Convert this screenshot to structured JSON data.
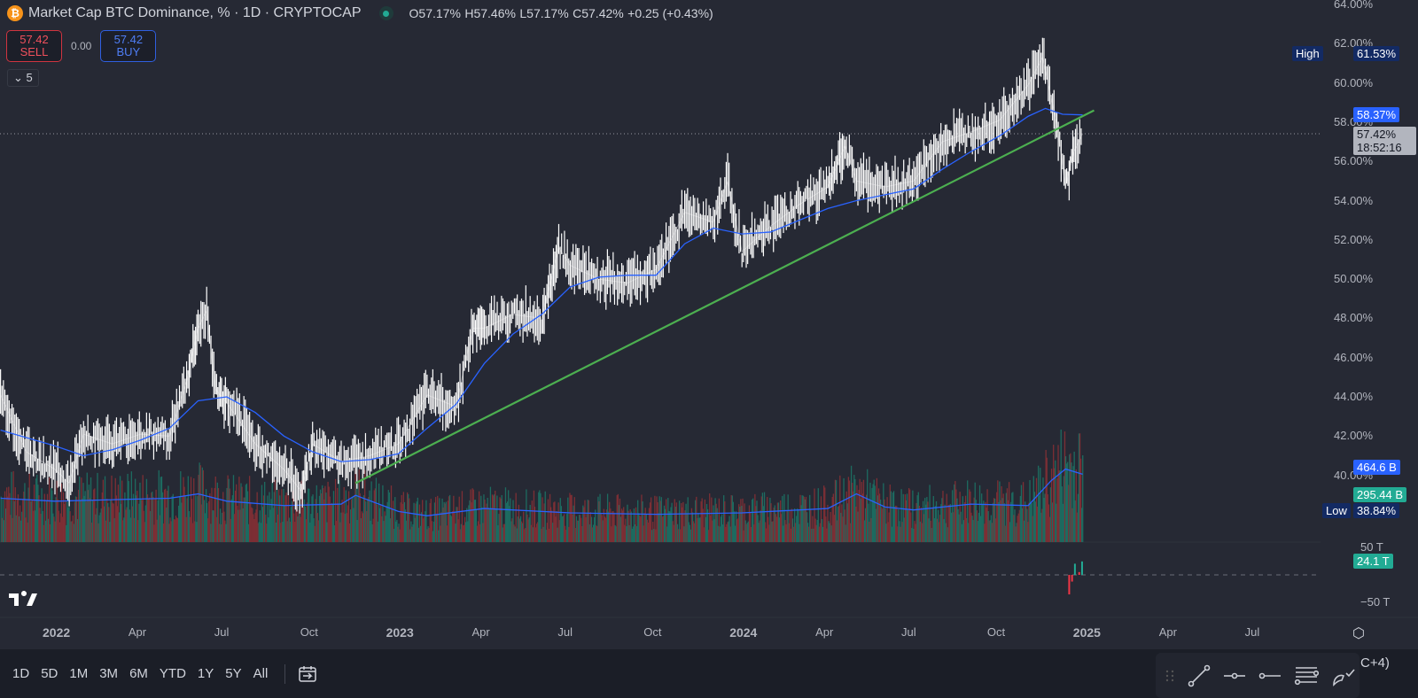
{
  "header": {
    "title": "Market Cap BTC Dominance, % · 1D · CRYPTOCAP",
    "open": "O57.17%",
    "high": "H57.46%",
    "low": "L57.17%",
    "close": "C57.42%",
    "change": "+0.25 (+0.43%)",
    "coin_glyph": "₿"
  },
  "trade": {
    "sell_price": "57.42",
    "sell_label": "SELL",
    "spread": "0.00",
    "buy_price": "57.42",
    "buy_label": "BUY"
  },
  "indicators_toggle": "5",
  "colors": {
    "bg": "#262934",
    "price": "#ffffff",
    "ma": "#2962ff",
    "trend": "#4caf50",
    "up": "#22ab94",
    "down": "#f23645"
  },
  "axis_labels": {
    "high_tag": "High",
    "high_value": "61.53%",
    "ma_value": "58.37%",
    "last_price": "57.42%",
    "countdown": "18:52:16",
    "vol_ma": "464.6 B",
    "volume": "295.44 B",
    "low_tag": "Low",
    "low_value": "38.84%",
    "osc_top": "50 T",
    "osc_value": "24.1 T",
    "osc_bottom": "−50 T"
  },
  "chart_data": {
    "type": "line",
    "title": "Market Cap BTC Dominance, %",
    "ylabel": "%",
    "ylim": [
      38,
      64
    ],
    "yticks": [
      "64.00%",
      "62.00%",
      "60.00%",
      "58.00%",
      "56.00%",
      "54.00%",
      "52.00%",
      "50.00%",
      "48.00%",
      "46.00%",
      "44.00%",
      "42.00%",
      "40.00%"
    ],
    "xticks": [
      "2022",
      "Apr",
      "Jul",
      "Oct",
      "2023",
      "Apr",
      "Jul",
      "Oct",
      "2024",
      "Apr",
      "Jul",
      "Oct",
      "2025",
      "Apr",
      "Jul"
    ],
    "x_unit": "months since Jan 2022",
    "series": [
      {
        "name": "BTC Dominance",
        "t": [
          -1.9,
          -1,
          0,
          0.5,
          1,
          2,
          3,
          4,
          4.6,
          5,
          5.3,
          5.6,
          6,
          7,
          8,
          8.6,
          9,
          10,
          11,
          12,
          13,
          14,
          14.6,
          15,
          16,
          17,
          17.6,
          18,
          19,
          20,
          21,
          22,
          23,
          23.5,
          24,
          25,
          26,
          27,
          27.6,
          28,
          29,
          30,
          31,
          32,
          33,
          34,
          34.5,
          35,
          35.3,
          35.6,
          35.9
        ],
        "values": [
          44.1,
          41.2,
          40.3,
          39.6,
          42.1,
          41.6,
          42.1,
          42,
          44.8,
          47.5,
          48.4,
          44.4,
          43.7,
          41.6,
          40.3,
          39.2,
          41.6,
          40.7,
          41,
          41.6,
          44.1,
          43.5,
          47.5,
          47.5,
          48.2,
          48,
          51.6,
          50.7,
          50,
          49.8,
          50.5,
          53.4,
          52.9,
          55,
          51.4,
          52.7,
          53.8,
          54.7,
          56.8,
          55,
          54.7,
          55,
          57,
          57.5,
          58.1,
          59.9,
          61.3,
          57.9,
          54.7,
          56.5,
          57.42
        ]
      },
      {
        "name": "Moving Average",
        "t": [
          -1.9,
          0,
          1,
          2,
          3,
          4,
          5,
          6,
          7,
          8,
          9,
          10,
          11,
          12,
          13,
          14,
          15,
          16,
          17,
          18,
          19,
          20,
          21,
          22,
          23,
          24,
          25,
          26,
          27,
          28,
          29,
          30,
          31,
          32,
          33,
          34,
          34.6,
          35.2,
          35.9
        ],
        "values": [
          42.3,
          41.5,
          41,
          41.3,
          41.8,
          42.4,
          43.8,
          44,
          43.2,
          42,
          41.2,
          40.7,
          40.8,
          41.1,
          42.4,
          43.6,
          45.7,
          47.2,
          48.2,
          49.6,
          50.1,
          50.2,
          50.2,
          51.8,
          52.6,
          52.3,
          52.4,
          53,
          53.6,
          54,
          54.3,
          54.6,
          55.6,
          56.5,
          57.3,
          58.3,
          58.7,
          58.4,
          58.37
        ]
      },
      {
        "name": "Trend line",
        "t": [
          10.5,
          36.3
        ],
        "values": [
          39.6,
          58.6
        ]
      }
    ],
    "volume_ma": {
      "t": [
        -1.9,
        0,
        4,
        5,
        6,
        8,
        10,
        10.5,
        12,
        13,
        15,
        18,
        21,
        24,
        27,
        28,
        29,
        30,
        32,
        34,
        34.8,
        35.3,
        35.9
      ],
      "values": [
        300,
        280,
        300,
        330,
        280,
        250,
        260,
        320,
        210,
        180,
        230,
        200,
        190,
        200,
        230,
        330,
        240,
        220,
        260,
        250,
        420,
        500,
        464.6
      ],
      "unit": "B"
    }
  },
  "time_axis_gear": "settings-icon",
  "bottom": {
    "ranges": [
      "1D",
      "5D",
      "1M",
      "3M",
      "6M",
      "YTD",
      "1Y",
      "5Y",
      "All"
    ],
    "timezone": "C+4)"
  }
}
